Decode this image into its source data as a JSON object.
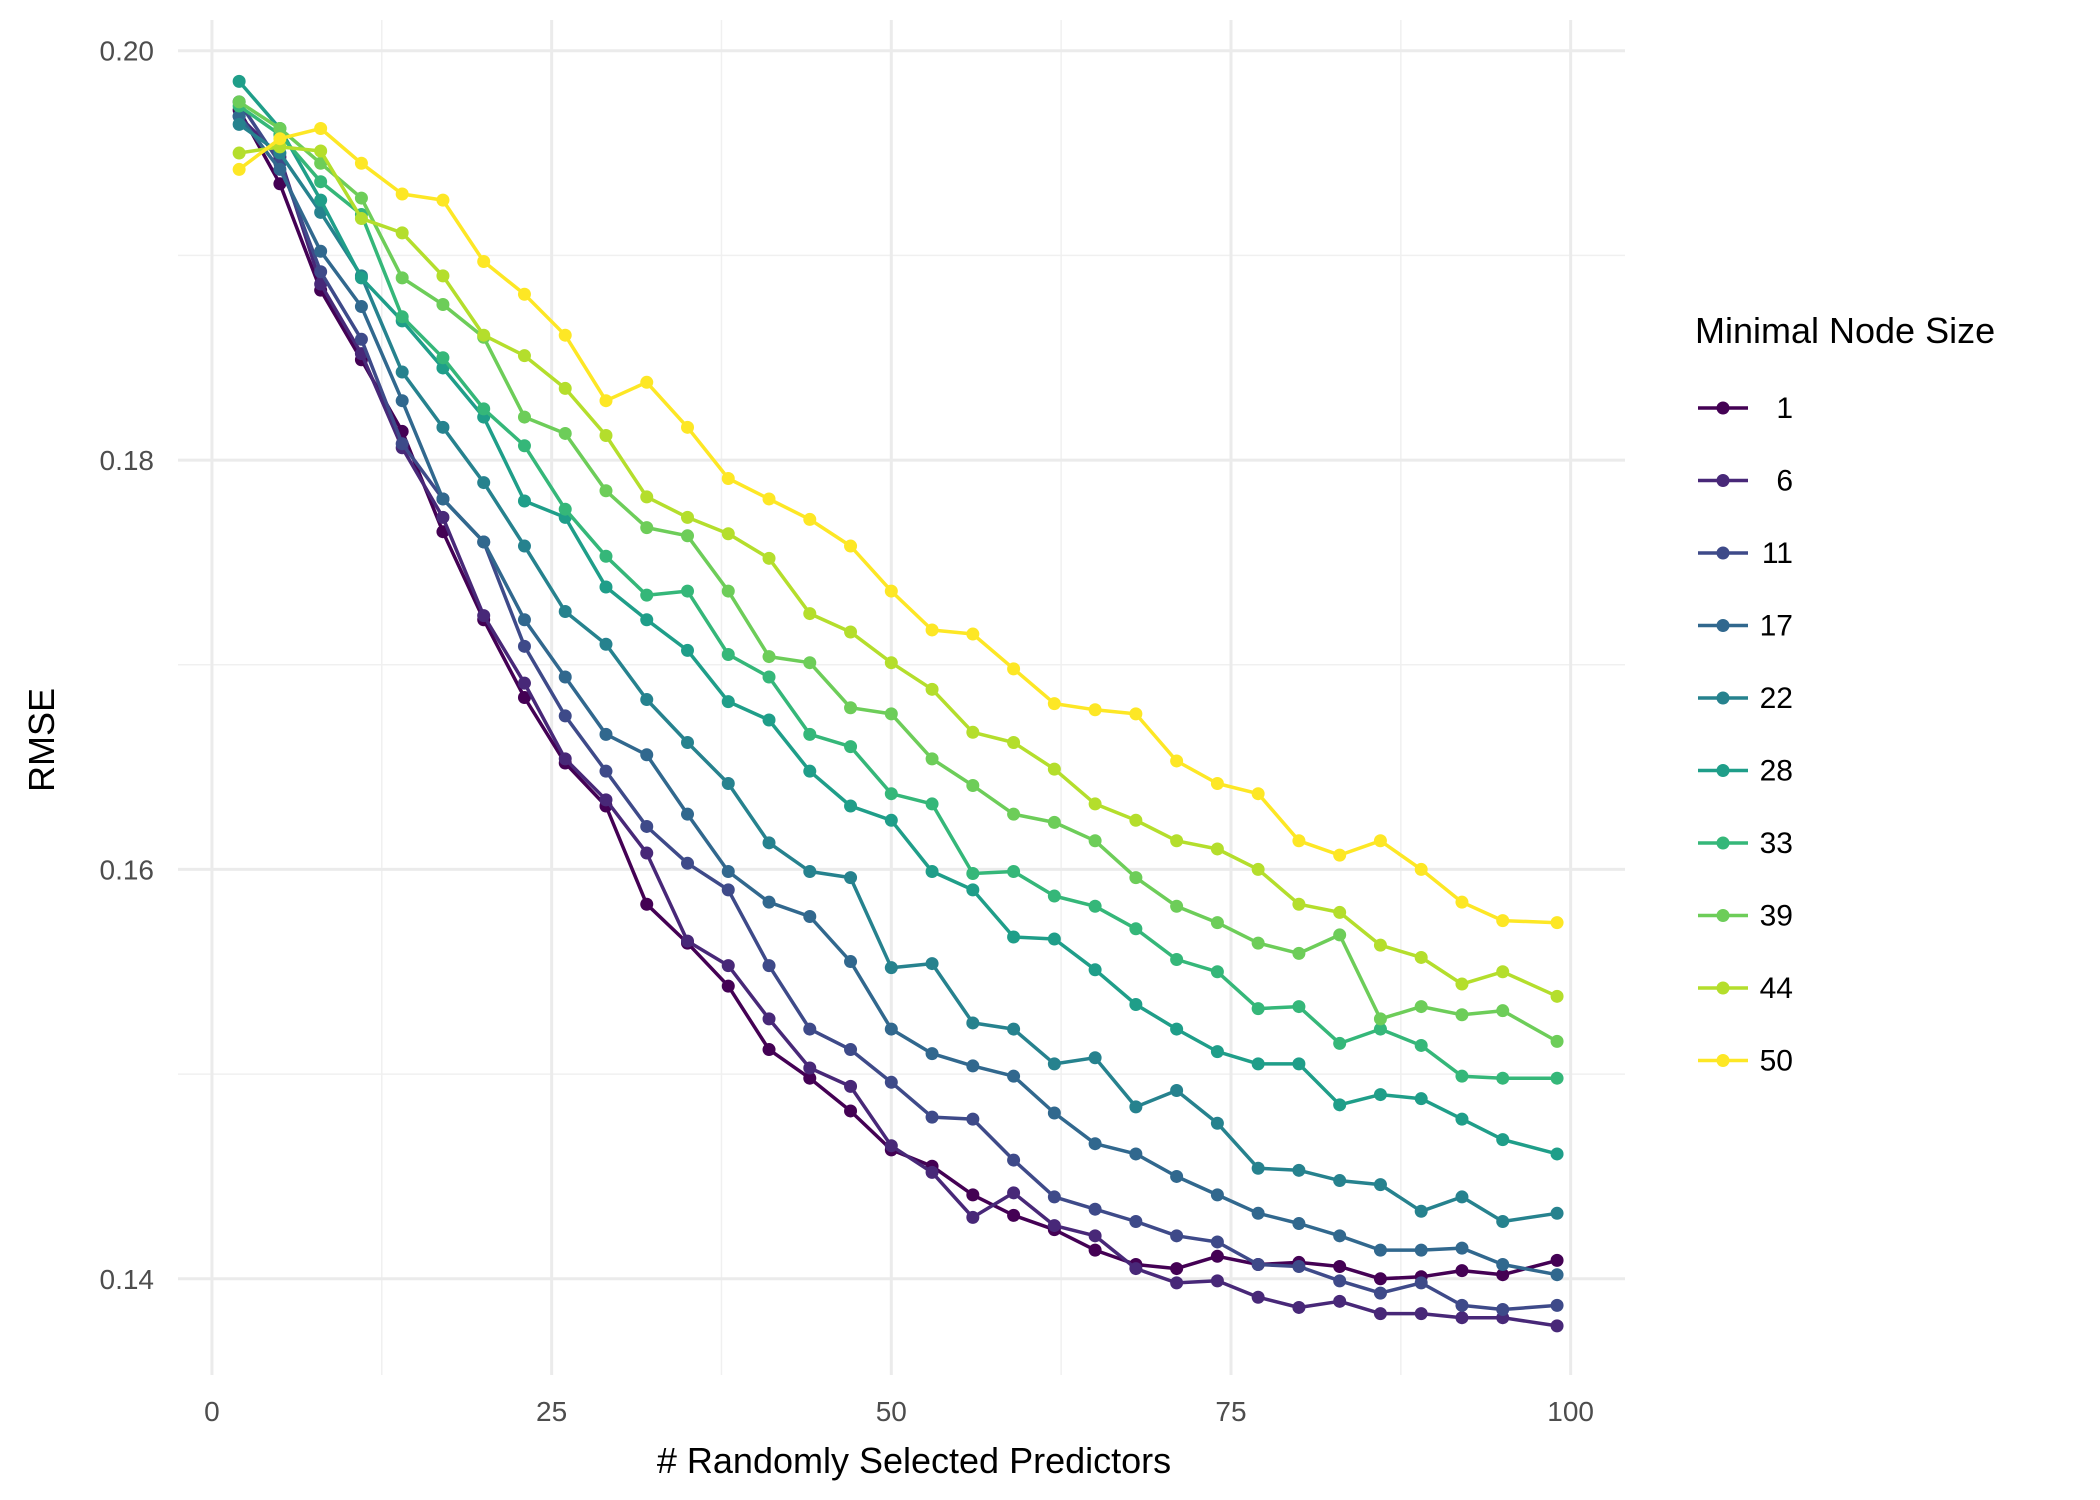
{
  "chart_data": {
    "type": "line",
    "xlabel": "# Randomly Selected Predictors",
    "ylabel": "RMSE",
    "xlim": [
      -2.5,
      104
    ],
    "ylim": [
      0.1353,
      0.2015
    ],
    "x_ticks": [
      0,
      25,
      50,
      75,
      100
    ],
    "x_tick_labels": [
      "0",
      "25",
      "50",
      "75",
      "100"
    ],
    "y_ticks": [
      0.14,
      0.16,
      0.18,
      0.2
    ],
    "y_tick_labels": [
      "0.14",
      "0.16",
      "0.18",
      "0.20"
    ],
    "grid": true,
    "legend": {
      "title": "Minimal Node Size",
      "position": "right"
    },
    "x": [
      2,
      5,
      8,
      11,
      14,
      17,
      20,
      23,
      26,
      29,
      32,
      35,
      38,
      41,
      44,
      47,
      50,
      53,
      56,
      59,
      62,
      65,
      68,
      71,
      74,
      77,
      80,
      83,
      86,
      89,
      92,
      95,
      99
    ],
    "series": [
      {
        "name": "1",
        "color": "#440154",
        "values": [
          0.1971,
          0.1935,
          0.1883,
          0.1849,
          0.1814,
          0.1765,
          0.1722,
          0.1684,
          0.1652,
          0.1631,
          0.1583,
          0.1564,
          0.1543,
          0.1512,
          0.1498,
          0.1482,
          0.1463,
          0.1455,
          0.1441,
          0.1431,
          0.1424,
          0.1414,
          0.1407,
          0.1405,
          0.1411,
          0.1407,
          0.1408,
          0.1406,
          0.14,
          0.1401,
          0.1404,
          0.1402,
          0.1409
        ]
      },
      {
        "name": "6",
        "color": "#482878",
        "values": [
          0.1968,
          0.1948,
          0.1886,
          0.1852,
          0.1806,
          0.1772,
          0.1724,
          0.1691,
          0.1654,
          0.1634,
          0.1608,
          0.1565,
          0.1553,
          0.1527,
          0.1503,
          0.1494,
          0.1465,
          0.1452,
          0.143,
          0.1442,
          0.1426,
          0.1421,
          0.1405,
          0.1398,
          0.1399,
          0.1391,
          0.1386,
          0.1389,
          0.1383,
          0.1383,
          0.1381,
          0.1381,
          0.1377
        ]
      },
      {
        "name": "11",
        "color": "#3E4A89",
        "values": [
          0.1975,
          0.1945,
          0.1892,
          0.1859,
          0.1808,
          0.1781,
          0.176,
          0.1709,
          0.1675,
          0.1648,
          0.1621,
          0.1603,
          0.159,
          0.1553,
          0.1522,
          0.1512,
          0.1496,
          0.1479,
          0.1478,
          0.1458,
          0.144,
          0.1434,
          0.1428,
          0.1421,
          0.1418,
          0.1407,
          0.1406,
          0.1399,
          0.1393,
          0.1398,
          0.1387,
          0.1385,
          0.1387
        ]
      },
      {
        "name": "17",
        "color": "#31688E",
        "values": [
          0.1968,
          0.1942,
          0.1902,
          0.1875,
          0.1829,
          0.1781,
          0.176,
          0.1722,
          0.1694,
          0.1666,
          0.1656,
          0.1627,
          0.1599,
          0.1584,
          0.1577,
          0.1555,
          0.1522,
          0.151,
          0.1504,
          0.1499,
          0.1481,
          0.1466,
          0.1461,
          0.145,
          0.1441,
          0.1432,
          0.1427,
          0.1421,
          0.1414,
          0.1414,
          0.1415,
          0.1407,
          0.1402
        ]
      },
      {
        "name": "22",
        "color": "#26828E",
        "values": [
          0.1964,
          0.195,
          0.1921,
          0.189,
          0.1843,
          0.1816,
          0.1789,
          0.1758,
          0.1726,
          0.171,
          0.1683,
          0.1662,
          0.1642,
          0.1613,
          0.1599,
          0.1596,
          0.1552,
          0.1554,
          0.1525,
          0.1522,
          0.1505,
          0.1508,
          0.1484,
          0.1492,
          0.1476,
          0.1454,
          0.1453,
          0.1448,
          0.1446,
          0.1433,
          0.144,
          0.1428,
          0.1432
        ]
      },
      {
        "name": "28",
        "color": "#1F9E89",
        "values": [
          0.1985,
          0.1962,
          0.1927,
          0.1889,
          0.1868,
          0.1845,
          0.1821,
          0.178,
          0.1772,
          0.1738,
          0.1722,
          0.1707,
          0.1682,
          0.1673,
          0.1648,
          0.1631,
          0.1624,
          0.1599,
          0.159,
          0.1567,
          0.1566,
          0.1551,
          0.1534,
          0.1522,
          0.1511,
          0.1505,
          0.1505,
          0.1485,
          0.149,
          0.1488,
          0.1478,
          0.1468,
          0.1461
        ]
      },
      {
        "name": "33",
        "color": "#35B779",
        "values": [
          0.1973,
          0.1959,
          0.1936,
          0.192,
          0.187,
          0.185,
          0.1825,
          0.1807,
          0.1776,
          0.1753,
          0.1734,
          0.1736,
          0.1705,
          0.1694,
          0.1666,
          0.166,
          0.1637,
          0.1632,
          0.1598,
          0.1599,
          0.1587,
          0.1582,
          0.1571,
          0.1556,
          0.155,
          0.1532,
          0.1533,
          0.1515,
          0.1522,
          0.1514,
          0.1499,
          0.1498,
          0.1498
        ]
      },
      {
        "name": "39",
        "color": "#6DCD59",
        "values": [
          0.1975,
          0.1962,
          0.1945,
          0.1928,
          0.1889,
          0.1876,
          0.186,
          0.1821,
          0.1813,
          0.1785,
          0.1767,
          0.1763,
          0.1736,
          0.1704,
          0.1701,
          0.1679,
          0.1676,
          0.1654,
          0.1641,
          0.1627,
          0.1623,
          0.1614,
          0.1596,
          0.1582,
          0.1574,
          0.1564,
          0.1559,
          0.1568,
          0.1527,
          0.1533,
          0.1529,
          0.1531,
          0.1516
        ]
      },
      {
        "name": "44",
        "color": "#B4DE2C",
        "values": [
          0.195,
          0.1953,
          0.1951,
          0.1918,
          0.1911,
          0.189,
          0.1861,
          0.1851,
          0.1835,
          0.1812,
          0.1782,
          0.1772,
          0.1764,
          0.1752,
          0.1725,
          0.1716,
          0.1701,
          0.1688,
          0.1667,
          0.1662,
          0.1649,
          0.1632,
          0.1624,
          0.1614,
          0.161,
          0.16,
          0.1583,
          0.1579,
          0.1563,
          0.1557,
          0.1544,
          0.155,
          0.1538
        ]
      },
      {
        "name": "50",
        "color": "#FDE725",
        "values": [
          0.1942,
          0.1957,
          0.1962,
          0.1945,
          0.193,
          0.1927,
          0.1897,
          0.1881,
          0.1861,
          0.1829,
          0.1838,
          0.1816,
          0.1791,
          0.1781,
          0.1771,
          0.1758,
          0.1736,
          0.1717,
          0.1715,
          0.1698,
          0.1681,
          0.1678,
          0.1676,
          0.1653,
          0.1642,
          0.1637,
          0.1614,
          0.1607,
          0.1614,
          0.16,
          0.1584,
          0.1575,
          0.1574
        ]
      }
    ]
  }
}
